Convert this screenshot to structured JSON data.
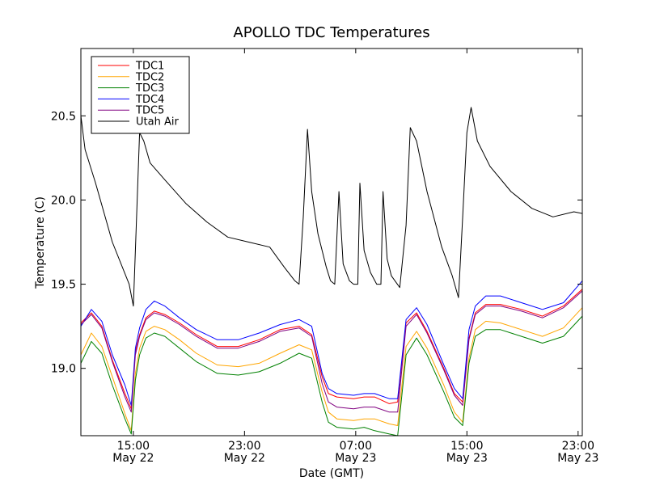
{
  "chart_data": {
    "type": "line",
    "title": "APOLLO TDC Temperatures",
    "xlabel": "Date (GMT)",
    "ylabel": "Temperature (C)",
    "xlim": [
      10.5,
      34.4
    ],
    "ylim": [
      18.6,
      20.9
    ],
    "yticks": [
      {
        "value": 19.0,
        "label": "19.0"
      },
      {
        "value": 19.5,
        "label": "19.5"
      },
      {
        "value": 20.0,
        "label": "20.0"
      },
      {
        "value": 20.5,
        "label": "20.5"
      }
    ],
    "xticks": [
      {
        "value": 13.0,
        "line1": "15:00",
        "line2": "May 22"
      },
      {
        "value": 18.3,
        "line1": "23:00",
        "line2": "May 22"
      },
      {
        "value": 23.6,
        "line1": "07:00",
        "line2": "May 23"
      },
      {
        "value": 28.9,
        "line1": "15:00",
        "line2": "May 23"
      },
      {
        "value": 34.2,
        "line1": "23:00",
        "line2": "May 23"
      }
    ],
    "legend_position": "top-left",
    "series": [
      {
        "name": "TDC1",
        "color": "#ff0000",
        "x": [
          10.5,
          11.0,
          11.5,
          12.0,
          12.6,
          12.9,
          13.1,
          13.3,
          13.6,
          14.0,
          14.5,
          15.2,
          16.0,
          17.0,
          18.0,
          19.0,
          20.0,
          20.9,
          21.5,
          22.0,
          22.3,
          22.7,
          23.5,
          24.0,
          24.5,
          25.2,
          25.6,
          26.0,
          26.5,
          27.0,
          27.8,
          28.3,
          28.7,
          29.0,
          29.3,
          29.8,
          30.5,
          31.5,
          32.5,
          33.5,
          34.4
        ],
        "values": [
          19.27,
          19.33,
          19.25,
          19.05,
          18.85,
          18.76,
          19.1,
          19.2,
          19.3,
          19.34,
          19.32,
          19.27,
          19.2,
          19.13,
          19.13,
          19.17,
          19.23,
          19.25,
          19.2,
          18.95,
          18.85,
          18.83,
          18.82,
          18.83,
          18.83,
          18.79,
          18.8,
          19.27,
          19.33,
          19.22,
          19.0,
          18.85,
          18.8,
          19.18,
          19.33,
          19.38,
          19.38,
          19.35,
          19.31,
          19.37,
          19.47
        ]
      },
      {
        "name": "TDC2",
        "color": "#ffa500",
        "x": [
          10.5,
          11.0,
          11.5,
          12.0,
          12.6,
          12.9,
          13.1,
          13.3,
          13.6,
          14.0,
          14.5,
          15.2,
          16.0,
          17.0,
          18.0,
          19.0,
          20.0,
          20.9,
          21.5,
          22.0,
          22.3,
          22.7,
          23.5,
          24.0,
          24.5,
          25.2,
          25.6,
          26.0,
          26.5,
          27.0,
          27.8,
          28.3,
          28.7,
          29.0,
          29.3,
          29.8,
          30.5,
          31.5,
          32.5,
          33.5,
          34.4
        ],
        "values": [
          19.08,
          19.21,
          19.13,
          18.95,
          18.73,
          18.63,
          18.97,
          19.12,
          19.22,
          19.25,
          19.23,
          19.17,
          19.09,
          19.02,
          19.01,
          19.03,
          19.09,
          19.14,
          19.11,
          18.86,
          18.74,
          18.7,
          18.69,
          18.7,
          18.7,
          18.67,
          18.66,
          19.13,
          19.22,
          19.12,
          18.9,
          18.74,
          18.68,
          19.06,
          19.23,
          19.28,
          19.27,
          19.23,
          19.19,
          19.24,
          19.36
        ]
      },
      {
        "name": "TDC3",
        "color": "#008000",
        "x": [
          10.5,
          11.0,
          11.5,
          12.0,
          12.6,
          12.9,
          13.1,
          13.3,
          13.6,
          14.0,
          14.5,
          15.2,
          16.0,
          17.0,
          18.0,
          19.0,
          20.0,
          20.9,
          21.5,
          22.0,
          22.3,
          22.7,
          23.5,
          24.0,
          24.5,
          25.2,
          25.6,
          26.0,
          26.5,
          27.0,
          27.8,
          28.3,
          28.7,
          29.0,
          29.3,
          29.8,
          30.5,
          31.5,
          32.5,
          33.5,
          34.4
        ],
        "values": [
          19.03,
          19.16,
          19.09,
          18.9,
          18.7,
          18.61,
          18.93,
          19.08,
          19.18,
          19.21,
          19.19,
          19.12,
          19.04,
          18.97,
          18.96,
          18.98,
          19.03,
          19.09,
          19.06,
          18.8,
          18.68,
          18.65,
          18.64,
          18.65,
          18.63,
          18.61,
          18.6,
          19.08,
          19.18,
          19.08,
          18.86,
          18.71,
          18.66,
          19.03,
          19.19,
          19.23,
          19.23,
          19.19,
          19.15,
          19.19,
          19.31
        ]
      },
      {
        "name": "TDC4",
        "color": "#0000ff",
        "x": [
          10.5,
          11.0,
          11.5,
          12.0,
          12.6,
          12.9,
          13.1,
          13.3,
          13.6,
          14.0,
          14.5,
          15.2,
          16.0,
          17.0,
          18.0,
          19.0,
          20.0,
          20.9,
          21.5,
          22.0,
          22.3,
          22.7,
          23.5,
          24.0,
          24.5,
          25.2,
          25.6,
          26.0,
          26.5,
          27.0,
          27.8,
          28.3,
          28.7,
          29.0,
          29.3,
          29.8,
          30.5,
          31.5,
          32.5,
          33.5,
          34.4
        ],
        "values": [
          19.25,
          19.35,
          19.28,
          19.08,
          18.9,
          18.78,
          19.12,
          19.24,
          19.35,
          19.4,
          19.37,
          19.3,
          19.23,
          19.17,
          19.17,
          19.21,
          19.26,
          19.29,
          19.25,
          18.97,
          18.88,
          18.85,
          18.84,
          18.85,
          18.85,
          18.82,
          18.82,
          19.29,
          19.36,
          19.26,
          19.02,
          18.88,
          18.82,
          19.23,
          19.37,
          19.43,
          19.43,
          19.39,
          19.35,
          19.39,
          19.52
        ]
      },
      {
        "name": "TDC5",
        "color": "#800080",
        "x": [
          10.5,
          11.0,
          11.5,
          12.0,
          12.6,
          12.9,
          13.1,
          13.3,
          13.6,
          14.0,
          14.5,
          15.2,
          16.0,
          17.0,
          18.0,
          19.0,
          20.0,
          20.9,
          21.5,
          22.0,
          22.3,
          22.7,
          23.5,
          24.0,
          24.5,
          25.2,
          25.6,
          26.0,
          26.5,
          27.0,
          27.8,
          28.3,
          28.7,
          29.0,
          29.3,
          29.8,
          30.5,
          31.5,
          32.5,
          33.5,
          34.4
        ],
        "values": [
          19.26,
          19.32,
          19.24,
          19.04,
          18.83,
          18.74,
          19.08,
          19.19,
          19.29,
          19.33,
          19.31,
          19.26,
          19.19,
          19.12,
          19.12,
          19.16,
          19.22,
          19.24,
          19.19,
          18.91,
          18.8,
          18.77,
          18.76,
          18.77,
          18.77,
          18.74,
          18.74,
          19.25,
          19.32,
          19.21,
          18.99,
          18.84,
          18.78,
          19.17,
          19.32,
          19.37,
          19.37,
          19.34,
          19.3,
          19.36,
          19.46
        ]
      },
      {
        "name": "Utah Air",
        "color": "#000000",
        "x": [
          10.5,
          10.7,
          11.2,
          12.0,
          12.8,
          13.0,
          13.1,
          13.3,
          13.5,
          13.8,
          14.5,
          15.5,
          16.5,
          17.5,
          18.5,
          19.5,
          20.2,
          20.7,
          20.9,
          21.1,
          21.3,
          21.5,
          21.8,
          22.2,
          22.4,
          22.6,
          22.8,
          23.0,
          23.3,
          23.5,
          23.7,
          23.8,
          24.0,
          24.3,
          24.6,
          24.8,
          24.9,
          25.1,
          25.3,
          25.7,
          26.0,
          26.2,
          26.5,
          27.0,
          27.7,
          28.2,
          28.5,
          28.7,
          28.9,
          29.1,
          29.4,
          30.0,
          31.0,
          32.0,
          33.0,
          34.0,
          34.4
        ],
        "values": [
          20.5,
          20.3,
          20.1,
          19.75,
          19.5,
          19.37,
          19.7,
          20.4,
          20.35,
          20.22,
          20.12,
          19.98,
          19.87,
          19.78,
          19.75,
          19.72,
          19.6,
          19.52,
          19.5,
          19.9,
          20.42,
          20.05,
          19.8,
          19.6,
          19.52,
          19.5,
          20.05,
          19.62,
          19.52,
          19.5,
          19.5,
          20.1,
          19.7,
          19.57,
          19.5,
          19.5,
          20.05,
          19.65,
          19.55,
          19.48,
          19.85,
          20.43,
          20.35,
          20.05,
          19.72,
          19.55,
          19.42,
          19.9,
          20.4,
          20.55,
          20.35,
          20.2,
          20.05,
          19.95,
          19.9,
          19.93,
          19.92
        ]
      }
    ]
  }
}
